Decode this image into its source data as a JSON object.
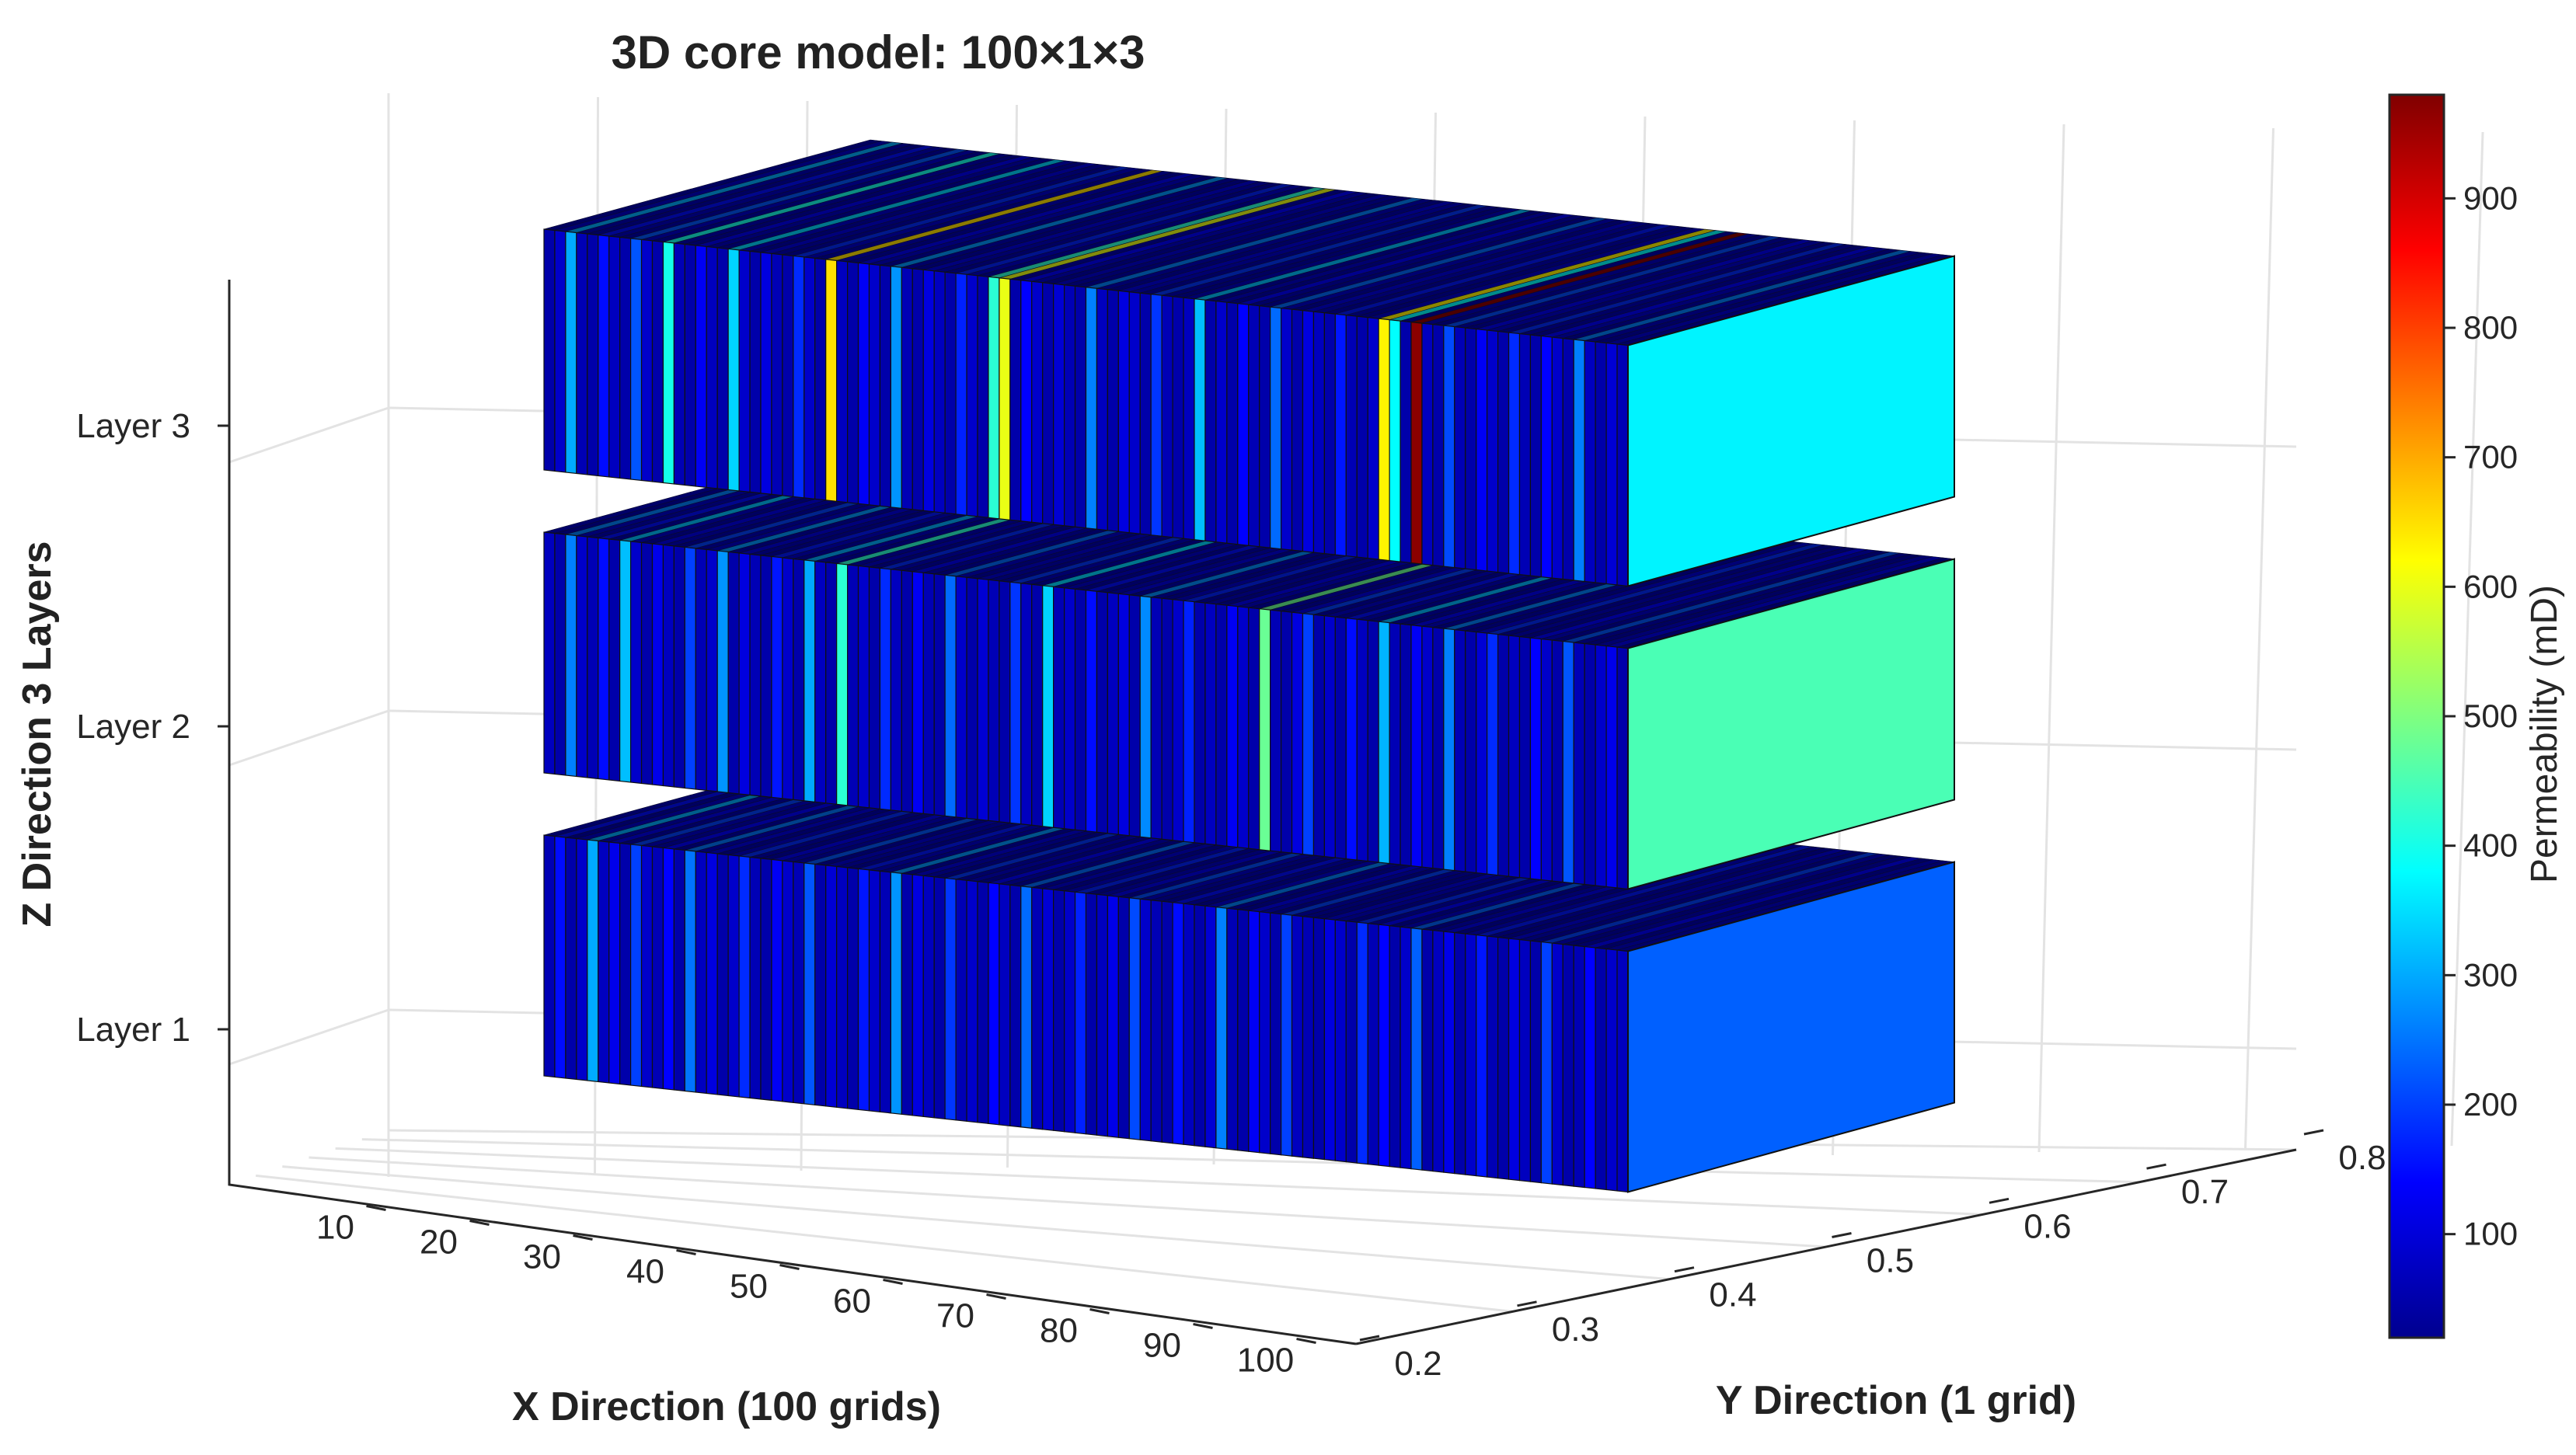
{
  "chart_data": {
    "type": "3d-block",
    "title": "3D core model: 100×1×3",
    "xlabel": "X Direction (100 grids)",
    "ylabel": "Y Direction (1 grid)",
    "zlabel": "Z Direction 3 Layers",
    "x_ticks": [
      "10",
      "20",
      "30",
      "40",
      "50",
      "60",
      "70",
      "80",
      "90",
      "100"
    ],
    "y_ticks": [
      "0.2",
      "0.3",
      "0.4",
      "0.5",
      "0.6",
      "0.7",
      "0.8"
    ],
    "z_ticks": [
      "Layer 1",
      "Layer 2",
      "Layer 3"
    ],
    "colorbar": {
      "label": "Permeability (mD)",
      "ticks": [
        "100",
        "200",
        "300",
        "400",
        "500",
        "600",
        "700",
        "800",
        "900"
      ],
      "range": [
        20,
        980
      ]
    },
    "layers": [
      {
        "name": "Layer 1",
        "end_face_value": 230,
        "values": [
          70,
          150,
          60,
          90,
          300,
          80,
          120,
          60,
          200,
          90,
          70,
          140,
          60,
          250,
          80,
          110,
          60,
          90,
          180,
          70,
          60,
          130,
          90,
          70,
          220,
          60,
          100,
          80,
          60,
          160,
          90,
          70,
          280,
          60,
          110,
          80,
          60,
          190,
          70,
          90,
          60,
          140,
          80,
          60,
          240,
          70,
          100,
          60,
          90,
          170,
          60,
          80,
          120,
          60,
          210,
          90,
          70,
          60,
          150,
          80,
          60,
          100,
          260,
          70,
          60,
          130,
          90,
          60,
          200,
          80,
          70,
          60,
          110,
          90,
          60,
          180,
          70,
          140,
          60,
          90,
          230,
          60,
          80,
          120,
          60,
          90,
          160,
          70,
          60,
          110,
          80,
          60,
          200,
          90,
          60,
          70,
          140,
          60,
          90,
          80
        ]
      },
      {
        "name": "Layer 2",
        "end_face_value": 450,
        "values": [
          80,
          60,
          260,
          90,
          70,
          150,
          60,
          320,
          90,
          60,
          120,
          80,
          60,
          200,
          70,
          90,
          280,
          60,
          110,
          70,
          60,
          160,
          90,
          60,
          300,
          80,
          60,
          420,
          70,
          90,
          60,
          180,
          80,
          60,
          130,
          70,
          60,
          240,
          90,
          60,
          100,
          70,
          60,
          190,
          80,
          60,
          340,
          70,
          90,
          60,
          150,
          60,
          80,
          110,
          60,
          270,
          70,
          60,
          90,
          170,
          60,
          80,
          60,
          130,
          90,
          60,
          480,
          70,
          60,
          110,
          200,
          60,
          90,
          60,
          150,
          80,
          60,
          310,
          70,
          60,
          130,
          90,
          60,
          260,
          70,
          60,
          100,
          180,
          60,
          80,
          60,
          140,
          90,
          60,
          220,
          70,
          60,
          90,
          120,
          60
        ]
      },
      {
        "name": "Layer 3",
        "end_face_value": 370,
        "values": [
          60,
          90,
          300,
          70,
          60,
          150,
          80,
          60,
          220,
          90,
          60,
          400,
          70,
          60,
          130,
          80,
          60,
          340,
          90,
          60,
          110,
          70,
          60,
          180,
          90,
          60,
          650,
          80,
          60,
          130,
          90,
          60,
          280,
          70,
          60,
          110,
          80,
          60,
          170,
          90,
          60,
          420,
          600,
          60,
          140,
          90,
          60,
          100,
          70,
          60,
          260,
          80,
          60,
          110,
          90,
          60,
          190,
          70,
          60,
          80,
          320,
          60,
          90,
          60,
          140,
          70,
          60,
          240,
          90,
          60,
          110,
          80,
          60,
          160,
          70,
          60,
          90,
          630,
          380,
          60,
          970,
          80,
          60,
          210,
          70,
          60,
          130,
          90,
          60,
          180,
          70,
          60,
          140,
          90,
          60,
          260,
          80,
          60,
          100,
          70
        ]
      }
    ]
  }
}
